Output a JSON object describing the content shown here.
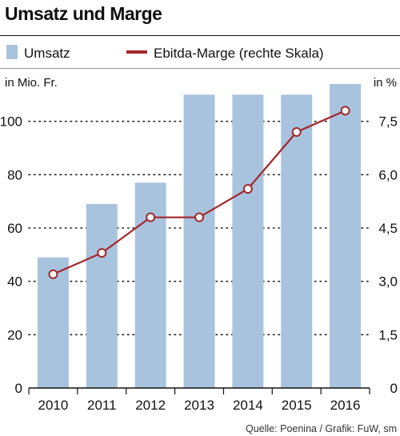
{
  "chart_data": {
    "type": "bar",
    "title": "Umsatz und Marge",
    "categories": [
      "2010",
      "2011",
      "2012",
      "2013",
      "2014",
      "2015",
      "2016"
    ],
    "bar_series": {
      "name": "Umsatz",
      "values": [
        49,
        69,
        77,
        110,
        110,
        110,
        114
      ],
      "color": "#a8c3de"
    },
    "line_series": {
      "name": "Ebitda-Marge (rechte Skala)",
      "values": [
        3.2,
        3.8,
        4.8,
        4.8,
        5.6,
        7.2,
        7.8
      ],
      "color": "#a3262b"
    },
    "left_axis": {
      "label": "in Mio. Fr.",
      "range": [
        0,
        120
      ],
      "ticks": [
        "0",
        "20",
        "40",
        "60",
        "80",
        "100"
      ]
    },
    "right_axis": {
      "label": "in %",
      "range": [
        0,
        9
      ],
      "ticks": [
        "0",
        "1,5",
        "3,0",
        "4,5",
        "6,0",
        "7,5"
      ]
    },
    "grid": "dotted",
    "legend_position": "top",
    "source": "Quelle: Poenina / Grafik: FuW, sm"
  }
}
